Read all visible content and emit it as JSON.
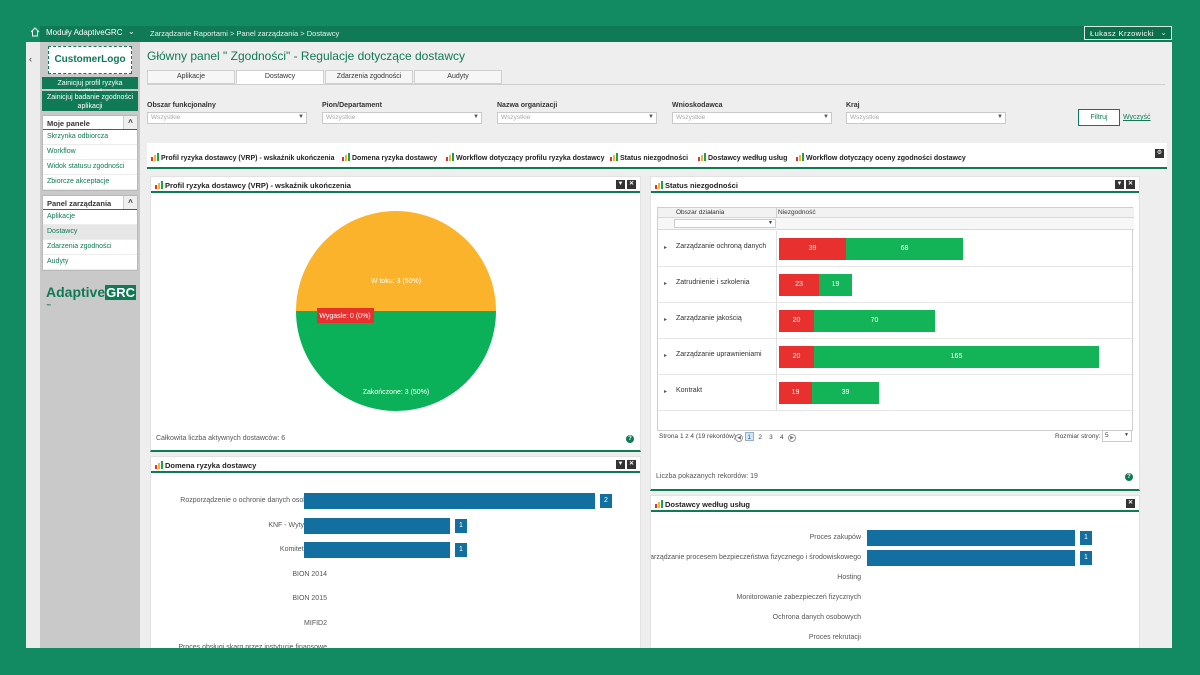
{
  "topbar": {
    "modules_label": "Moduły AdaptiveGRC",
    "breadcrumb": "Zarządzanie Raportami > Panel zarządzania > Dostawcy",
    "user": "Łukasz Krzowicki"
  },
  "sidebar": {
    "customer_logo": "CustomerLogo",
    "buttons": [
      "Zainicjuj profil ryzyka aplikacji",
      "Zainicjuj badanie zgodności aplikacji"
    ],
    "my_panels": {
      "title": "Moje panele",
      "items": [
        "Skrzynka odbiorcza",
        "Workflow",
        "Widok statusu zgodności",
        "Zbiorcze akceptacje"
      ]
    },
    "management": {
      "title": "Panel zarządzania",
      "items": [
        "Aplikacje",
        "Dostawcy",
        "Zdarzenia zgodności",
        "Audyty"
      ]
    },
    "brand": "Adaptive",
    "brand_mark": "GRC",
    "brand_tm": "™"
  },
  "main": {
    "title": "Główny panel \" Zgodności\" - Regulacje dotyczące dostawcy",
    "tabs": [
      "Aplikacje",
      "Dostawcy",
      "Zdarzenia zgodności",
      "Audyty"
    ],
    "filters": [
      {
        "label": "Obszar funkcjonalny",
        "placeholder": "Wszystkie"
      },
      {
        "label": "Pion/Departament",
        "placeholder": "Wszystkie"
      },
      {
        "label": "Nazwa organizacji",
        "placeholder": "Wszystkie"
      },
      {
        "label": "Wnioskodawca",
        "placeholder": "Wszystkie"
      },
      {
        "label": "Kraj",
        "placeholder": "Wszystkie"
      }
    ],
    "filter_button": "Filtruj",
    "clear_link": "Wyczyść",
    "widget_bar": [
      "Profil ryzyka dostawcy (VRP) - wskaźnik ukończenia",
      "Domena ryzyka dostawcy",
      "Workflow dotyczący profilu ryzyka dostawcy",
      "Status niezgodności",
      "Dostawcy według usług",
      "Workflow dotyczący oceny zgodności dostawcy"
    ]
  },
  "pie_card": {
    "title": "Profil ryzyka dostawcy (VRP) - wskaźnik ukończenia",
    "footer": "Całkowita liczba aktywnych dostawców: 6",
    "slices": [
      {
        "label": "W toku: 3 (50%)",
        "value": 3,
        "color": "#fbb32b"
      },
      {
        "label": "Zakończone: 3 (50%)",
        "value": 3,
        "color": "#0bb159"
      },
      {
        "label": "Wygasłe: 0 (0%)",
        "value": 0,
        "color": "#e8312e"
      }
    ]
  },
  "status_card": {
    "title": "Status niezgodności",
    "col_area": "Obszar działania",
    "col_noncompliance": "Niezgodność",
    "rows": [
      {
        "name": "Zarządzanie ochroną danych",
        "red": 39,
        "green": 68
      },
      {
        "name": "Zatrudnienie i szkolenia",
        "red": 23,
        "green": 19
      },
      {
        "name": "Zarządzanie jakością",
        "red": 20,
        "green": 70
      },
      {
        "name": "Zarządzanie uprawnieniami",
        "red": 20,
        "green": 165
      },
      {
        "name": "Kontrakt",
        "red": 19,
        "green": 39
      }
    ],
    "pager_text": "Strona 1 z 4 (19 rekordów)",
    "pages": [
      "1",
      "2",
      "3",
      "4"
    ],
    "page_size_label": "Rozmiar strony:",
    "page_size": "5",
    "footer": "Liczba pokazanych rekordów: 19"
  },
  "domain_card": {
    "title": "Domena ryzyka dostawcy",
    "rows": [
      {
        "label": "Rozporządzenie o ochronie danych osobowych",
        "value": 2
      },
      {
        "label": "KNF - Wytyczne IT",
        "value": 1
      },
      {
        "label": "Komitet Audytu",
        "value": 1
      },
      {
        "label": "BION 2014",
        "value": 0
      },
      {
        "label": "BION 2015",
        "value": 0
      },
      {
        "label": "MIFID2",
        "value": 0
      },
      {
        "label": "Proces obsługi skarg przez instytucje finansowe",
        "value": 0
      }
    ]
  },
  "services_card": {
    "title": "Dostawcy według usług",
    "rows": [
      {
        "label": "Proces zakupów",
        "value": 1
      },
      {
        "label": "Zarządzanie procesem bezpieczeństwa fizycznego i środowiskowego",
        "value": 1
      },
      {
        "label": "Hosting",
        "value": 0
      },
      {
        "label": "Monitorowanie zabezpieczeń fizycznych",
        "value": 0
      },
      {
        "label": "Ochrona danych osobowych",
        "value": 0
      },
      {
        "label": "Proces rekrutacji",
        "value": 0
      }
    ]
  },
  "colors": {
    "brand": "#0f7a55",
    "bar": "#126fa0",
    "red": "#e8312e",
    "green": "#13b357"
  }
}
